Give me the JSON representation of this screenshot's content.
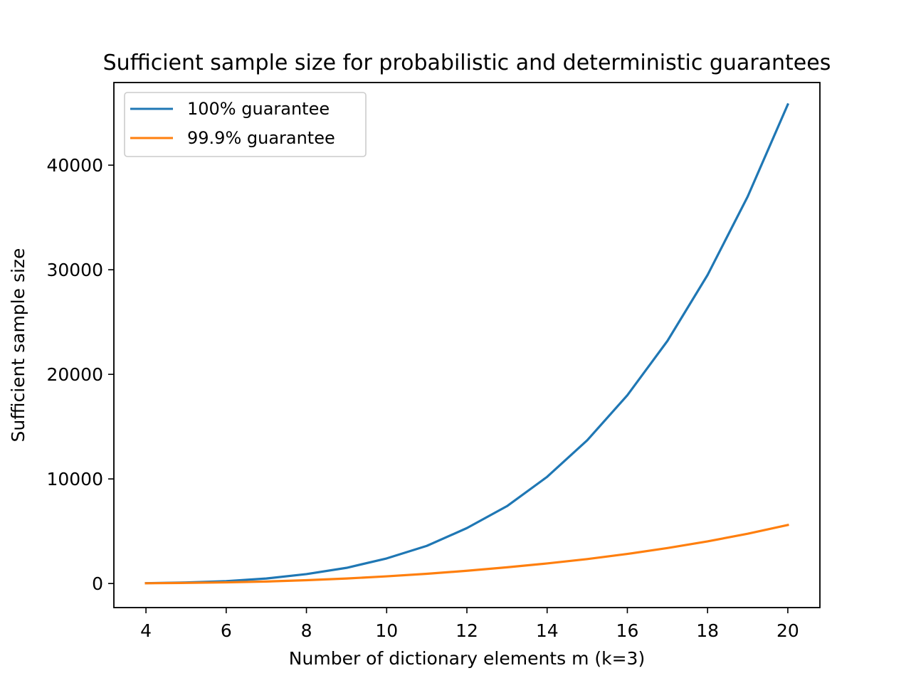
{
  "chart_data": {
    "type": "line",
    "title": "Sufficient sample size for probabilistic and deterministic guarantees",
    "xlabel": "Number of dictionary elements m (k=3)",
    "ylabel": "Sufficient sample size",
    "xlim": [
      3.2,
      20.8
    ],
    "ylim": [
      -2300,
      47900
    ],
    "xticks": [
      4,
      6,
      8,
      10,
      12,
      14,
      16,
      18,
      20
    ],
    "yticks": [
      0,
      10000,
      20000,
      30000,
      40000
    ],
    "x": [
      4,
      5,
      6,
      7,
      8,
      9,
      10,
      11,
      12,
      13,
      14,
      15,
      16,
      17,
      18,
      19,
      20
    ],
    "series": [
      {
        "name": "100% guarantee",
        "color": "#1f77b4",
        "values": [
          35,
          100,
          230,
          480,
          900,
          1500,
          2400,
          3600,
          5300,
          7400,
          10200,
          13700,
          18000,
          23200,
          29500,
          37000,
          45800
        ]
      },
      {
        "name": "99.9% guarantee",
        "color": "#ff7f0e",
        "values": [
          25,
          60,
          110,
          190,
          320,
          480,
          690,
          930,
          1220,
          1550,
          1920,
          2340,
          2830,
          3390,
          4030,
          4760,
          5600
        ]
      }
    ],
    "legend": "upper-left",
    "grid": false
  }
}
